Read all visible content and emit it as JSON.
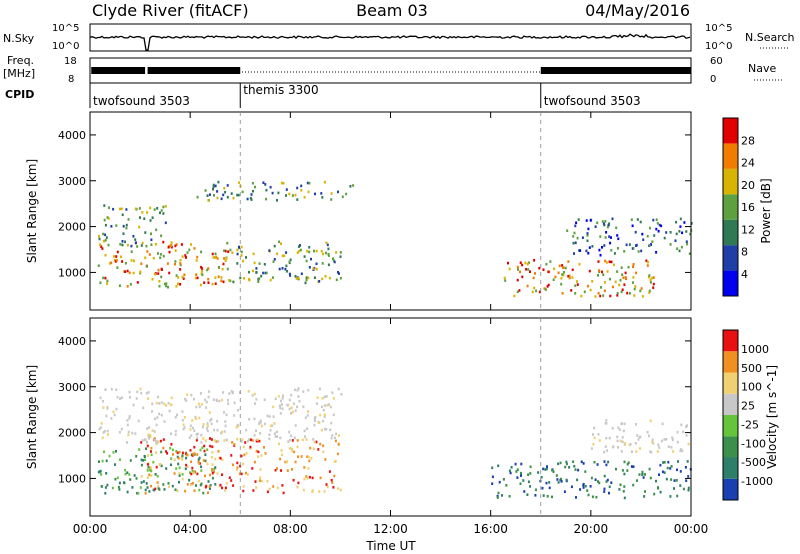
{
  "header": {
    "site": "Clyde River (fitACF)",
    "beam": "Beam 03",
    "date": "04/May/2016"
  },
  "strips": {
    "nsky_label": "N.Sky",
    "nsearch_label": "N.Search",
    "freq_label_line1": "Freq.",
    "freq_label_line2": "[MHz]",
    "nave_label": "Nave",
    "cpid_label": "CPID",
    "noise_ticks_left": [
      "10^5",
      "10^0"
    ],
    "noise_ticks_right": [
      "10^5",
      "10^0"
    ],
    "freq_ticks_left": [
      "18",
      "8"
    ],
    "freq_ticks_right": [
      "60",
      "0"
    ]
  },
  "cpid_segments": [
    {
      "label": "twofsound 3503",
      "start_hour": 0
    },
    {
      "label": "themis 3300",
      "start_hour": 6
    },
    {
      "label": "twofsound 3503",
      "start_hour": 18
    }
  ],
  "chart_data": [
    {
      "type": "heatmap",
      "panel": "power",
      "ylabel": "Slant Range [km]",
      "ylim": [
        180,
        4500
      ],
      "y_ticks": [
        "1000",
        "2000",
        "3000",
        "4000"
      ],
      "colorbar_label": "Power [dB]",
      "colorbar_ticks": [
        "28",
        "24",
        "20",
        "16",
        "12",
        "8",
        "4"
      ],
      "colors": [
        "#0000ee",
        "#1f3fa6",
        "#2f7a55",
        "#5da040",
        "#d8b400",
        "#f07c00",
        "#e00000"
      ],
      "x_range_hours": [
        0,
        24
      ],
      "regions": [
        {
          "hours": [
            0.3,
            5.5
          ],
          "range_km": [
            700,
            1700
          ],
          "level": "high"
        },
        {
          "hours": [
            0.3,
            3.0
          ],
          "range_km": [
            1600,
            2500
          ],
          "level": "mid"
        },
        {
          "hours": [
            4.0,
            10.5
          ],
          "range_km": [
            2600,
            3000
          ],
          "level": "mid"
        },
        {
          "hours": [
            5.5,
            10.0
          ],
          "range_km": [
            800,
            1700
          ],
          "level": "mid"
        },
        {
          "hours": [
            16.5,
            22.5
          ],
          "range_km": [
            500,
            1300
          ],
          "level": "high"
        },
        {
          "hours": [
            19.0,
            24.0
          ],
          "range_km": [
            1400,
            2200
          ],
          "level": "low"
        }
      ]
    },
    {
      "type": "heatmap",
      "panel": "velocity",
      "ylabel": "Slant Range [km]",
      "ylim": [
        180,
        4500
      ],
      "y_ticks": [
        "1000",
        "2000",
        "3000",
        "4000"
      ],
      "colorbar_label": "Velocity [m s^-1]",
      "colorbar_ticks": [
        "1000",
        "500",
        "100",
        "25",
        "-25",
        "-100",
        "-500",
        "-1000"
      ],
      "colors": [
        "#1a3fb0",
        "#2d7f6a",
        "#3c8f4a",
        "#66c43a",
        "#c8c8c8",
        "#f0d070",
        "#f09020",
        "#e81010"
      ],
      "x_range_hours": [
        0,
        24
      ],
      "regions": [
        {
          "hours": [
            0.3,
            5.0
          ],
          "range_km": [
            700,
            1700
          ],
          "level": "toward-mid"
        },
        {
          "hours": [
            2.0,
            10.0
          ],
          "range_km": [
            700,
            1900
          ],
          "level": "away"
        },
        {
          "hours": [
            0.3,
            10.0
          ],
          "range_km": [
            1800,
            3000
          ],
          "level": "near-zero"
        },
        {
          "hours": [
            16.0,
            24.0
          ],
          "range_km": [
            600,
            1400
          ],
          "level": "toward-high"
        },
        {
          "hours": [
            20.0,
            24.0
          ],
          "range_km": [
            1600,
            2300
          ],
          "level": "near-zero"
        }
      ]
    }
  ],
  "time_axis": {
    "ticks": [
      "00:00",
      "04:00",
      "08:00",
      "12:00",
      "16:00",
      "20:00",
      "00:00"
    ],
    "label": "Time UT"
  }
}
